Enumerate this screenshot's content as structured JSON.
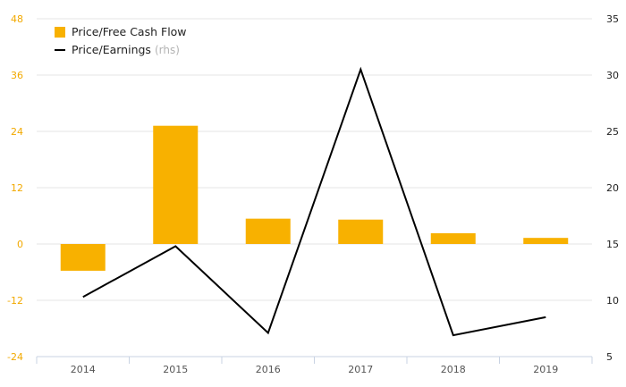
{
  "chart_data": {
    "type": "bar+line",
    "categories": [
      "2014",
      "2015",
      "2016",
      "2017",
      "2018",
      "2019"
    ],
    "series": [
      {
        "name": "Price/Free Cash Flow",
        "type": "bar",
        "axis": "left",
        "color": "#f8b100",
        "values": [
          -5.7,
          25.2,
          5.4,
          5.2,
          2.3,
          1.3
        ]
      },
      {
        "name": "Price/Earnings",
        "name_suffix": "(rhs)",
        "type": "line",
        "axis": "right",
        "color": "#000000",
        "values": [
          10.3,
          14.8,
          7.1,
          30.5,
          6.9,
          8.5
        ]
      }
    ],
    "left_axis": {
      "ticks": [
        -24,
        -12,
        0,
        12,
        24,
        36,
        48
      ],
      "tick_labels": [
        "-24",
        "-12",
        "0",
        "12",
        "24",
        "36",
        "48"
      ],
      "ylim": [
        -24,
        48
      ],
      "label_color": "#f2a900"
    },
    "right_axis": {
      "ticks": [
        5,
        10,
        15,
        20,
        25,
        30,
        35
      ],
      "tick_labels": [
        "5",
        "10",
        "15",
        "20",
        "25",
        "30",
        "35"
      ],
      "ylim": [
        5,
        35
      ],
      "label_color": "#222222"
    },
    "grid": true,
    "legend_position": "top-left",
    "title": "",
    "xlabel": "",
    "ylabel": ""
  }
}
